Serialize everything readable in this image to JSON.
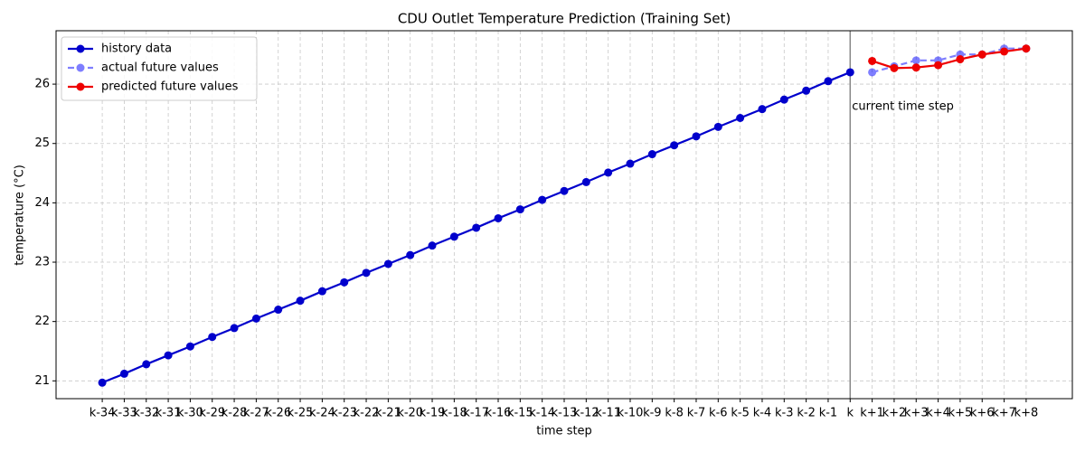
{
  "chart_data": {
    "type": "line",
    "title": "CDU Outlet Temperature Prediction (Training Set)",
    "x_label": "time step",
    "y_label": "temperature (°C)",
    "categories": [
      "k-34",
      "k-33",
      "k-32",
      "k-31",
      "k-30",
      "k-29",
      "k-28",
      "k-27",
      "k-26",
      "k-25",
      "k-24",
      "k-23",
      "k-22",
      "k-21",
      "k-20",
      "k-19",
      "k-18",
      "k-17",
      "k-16",
      "k-15",
      "k-14",
      "k-13",
      "k-12",
      "k-11",
      "k-10",
      "k-9",
      "k-8",
      "k-7",
      "k-6",
      "k-5",
      "k-4",
      "k-3",
      "k-2",
      "k-1",
      "k",
      "k+1",
      "k+2",
      "k+3",
      "k+4",
      "k+5",
      "k+6",
      "k+7",
      "k+8"
    ],
    "series": [
      {
        "name": "history data",
        "color": "#0000cc",
        "linestyle": "solid",
        "alpha": 1,
        "values": [
          20.97,
          21.12,
          21.28,
          21.43,
          21.58,
          21.74,
          21.89,
          22.05,
          22.2,
          22.35,
          22.51,
          22.66,
          22.82,
          22.97,
          23.12,
          23.28,
          23.43,
          23.58,
          23.74,
          23.89,
          24.05,
          24.2,
          24.35,
          24.51,
          24.66,
          24.82,
          24.97,
          25.12,
          25.28,
          25.43,
          25.58,
          25.74,
          25.89,
          26.05,
          26.2,
          null,
          null,
          null,
          null,
          null,
          null,
          null,
          null
        ]
      },
      {
        "name": "actual future values",
        "color": "#0000ff",
        "linestyle": "dashed",
        "alpha": 0.5,
        "values": [
          null,
          null,
          null,
          null,
          null,
          null,
          null,
          null,
          null,
          null,
          null,
          null,
          null,
          null,
          null,
          null,
          null,
          null,
          null,
          null,
          null,
          null,
          null,
          null,
          null,
          null,
          null,
          null,
          null,
          null,
          null,
          null,
          null,
          null,
          null,
          26.2,
          26.3,
          26.4,
          26.4,
          26.5,
          26.5,
          26.6,
          26.6
        ]
      },
      {
        "name": "predicted future values",
        "color": "#ee0000",
        "linestyle": "solid",
        "alpha": 1,
        "values": [
          null,
          null,
          null,
          null,
          null,
          null,
          null,
          null,
          null,
          null,
          null,
          null,
          null,
          null,
          null,
          null,
          null,
          null,
          null,
          null,
          null,
          null,
          null,
          null,
          null,
          null,
          null,
          null,
          null,
          null,
          null,
          null,
          null,
          null,
          null,
          26.39,
          26.27,
          26.28,
          26.32,
          26.42,
          26.5,
          26.55,
          26.6
        ]
      }
    ],
    "current_step": "k",
    "annotation": "current time step",
    "ylim": [
      20.7,
      26.9
    ],
    "yticks": [
      21,
      22,
      23,
      24,
      25,
      26
    ],
    "grid": true,
    "legend": "upper left"
  }
}
